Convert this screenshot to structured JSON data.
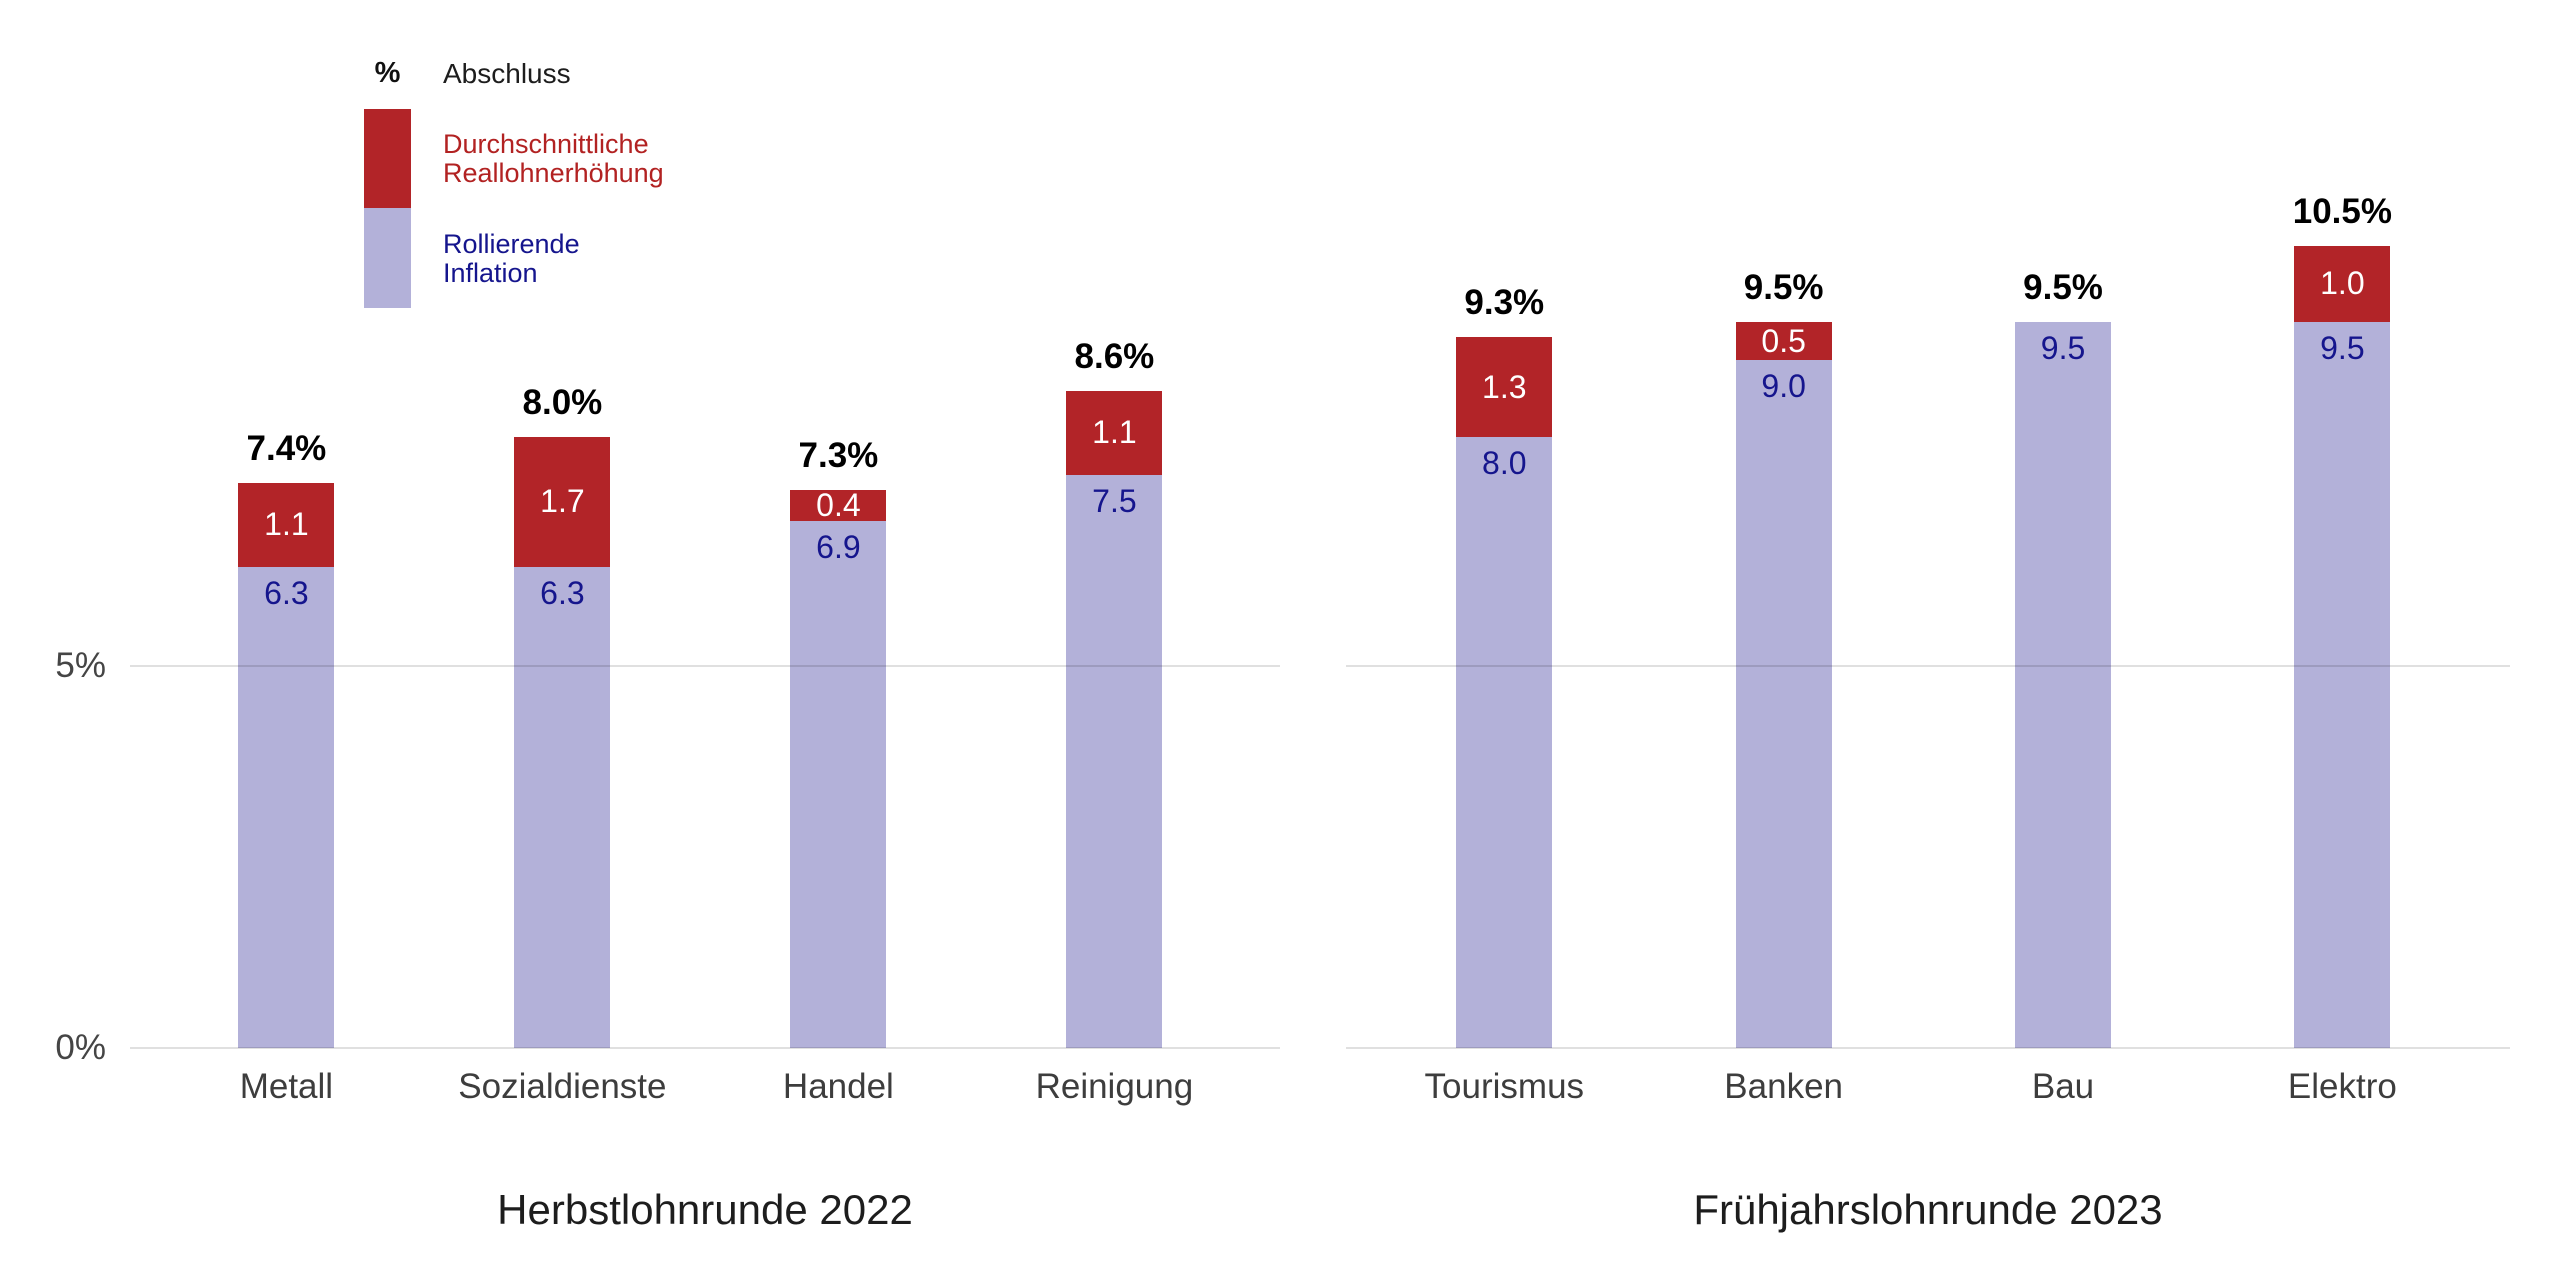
{
  "legend": {
    "unit_symbol": "%",
    "unit_label": "Abschluss",
    "items": [
      {
        "id": "reallohn",
        "label_lines": [
          "Durchschnittliche",
          "Reallohnerhöhung"
        ],
        "swatch_color": "#b22428",
        "text_color": "#b22222"
      },
      {
        "id": "inflation",
        "label_lines": [
          "Rollierende",
          "Inflation"
        ],
        "swatch_color": "#b3b1d9",
        "text_color": "#15158d"
      }
    ]
  },
  "colors": {
    "reallohn_bar": "#b22428",
    "inflation_bar": "#b3b1d9",
    "inflation_value_text": "#15158d",
    "reallohn_value_text": "#ffffff",
    "gridline": "rgba(0,0,0,0.12)"
  },
  "chart_data": [
    {
      "type": "bar",
      "stacked": true,
      "title": "Herbstlohnrunde 2022",
      "categories": [
        "Metall",
        "Sozialdienste",
        "Handel",
        "Reinigung"
      ],
      "series": [
        {
          "name": "Rollierende Inflation",
          "color": "#b3b1d9",
          "values": [
            6.3,
            6.3,
            6.9,
            7.5
          ]
        },
        {
          "name": "Durchschnittliche Reallohnerhöhung",
          "color": "#b22428",
          "values": [
            1.1,
            1.7,
            0.4,
            1.1
          ]
        }
      ],
      "totals": [
        7.4,
        8.0,
        7.3,
        8.6
      ],
      "total_labels": [
        "7.4%",
        "8.0%",
        "7.3%",
        "8.6%"
      ],
      "ylim": [
        0,
        12
      ],
      "grid_values": [
        0,
        5
      ],
      "yticks": [
        {
          "value": 0,
          "label": "0%"
        },
        {
          "value": 5,
          "label": "5%"
        }
      ],
      "legend_position": "top-left"
    },
    {
      "type": "bar",
      "stacked": true,
      "title": "Frühjahrslohnrunde 2023",
      "categories": [
        "Tourismus",
        "Banken",
        "Bau",
        "Elektro"
      ],
      "series": [
        {
          "name": "Rollierende Inflation",
          "color": "#b3b1d9",
          "values": [
            8.0,
            9.0,
            9.5,
            9.5
          ]
        },
        {
          "name": "Durchschnittliche Reallohnerhöhung",
          "color": "#b22428",
          "values": [
            1.3,
            0.5,
            0.0,
            1.0
          ]
        }
      ],
      "totals": [
        9.3,
        9.5,
        9.5,
        10.5
      ],
      "total_labels": [
        "9.3%",
        "9.5%",
        "9.5%",
        "10.5%"
      ],
      "ylim": [
        0,
        12
      ],
      "grid_values": [
        0,
        5
      ],
      "yticks": []
    }
  ]
}
